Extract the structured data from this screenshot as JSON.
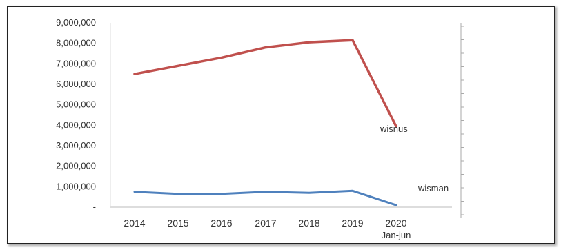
{
  "chart_data": {
    "type": "line",
    "title": "",
    "xlabel": "",
    "ylabel": "",
    "categories": [
      "2014",
      "2015",
      "2016",
      "2017",
      "2018",
      "2019",
      "2020"
    ],
    "category_sublabels": [
      "",
      "",
      "",
      "",
      "",
      "",
      "Jan-jun"
    ],
    "y_ticks": [
      "-",
      "1,000,000",
      "2,000,000",
      "3,000,000",
      "4,000,000",
      "5,000,000",
      "6,000,000",
      "7,000,000",
      "8,000,000",
      "9,000,000"
    ],
    "ylim": [
      0,
      9000000
    ],
    "grid": false,
    "series": [
      {
        "name": "wisnus",
        "color": "#c0504d",
        "values": [
          6500000,
          6900000,
          7300000,
          7800000,
          8050000,
          8150000,
          3950000
        ]
      },
      {
        "name": "wisman",
        "color": "#4f81bd",
        "values": [
          750000,
          650000,
          650000,
          750000,
          700000,
          800000,
          100000
        ]
      }
    ]
  }
}
